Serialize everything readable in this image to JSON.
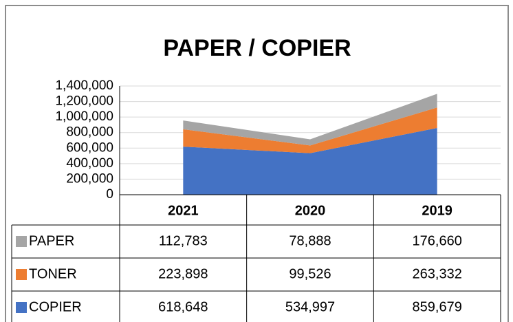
{
  "chart_data": {
    "type": "area",
    "title": "PAPER / COPIER",
    "categories": [
      "2021",
      "2020",
      "2019"
    ],
    "series": [
      {
        "name": "COPIER",
        "color": "#4472c4",
        "values": [
          618648,
          534997,
          859679
        ],
        "value_labels": [
          "618,648",
          "534,997",
          "859,679"
        ]
      },
      {
        "name": "TONER",
        "color": "#ed7d31",
        "values": [
          223898,
          99526,
          263332
        ],
        "value_labels": [
          "223,898",
          "99,526",
          "263,332"
        ]
      },
      {
        "name": "PAPER",
        "color": "#a5a5a5",
        "values": [
          112783,
          78888,
          176660
        ],
        "value_labels": [
          "112,783",
          "78,888",
          "176,660"
        ]
      }
    ],
    "stacked": true,
    "ylim": [
      0,
      1400000
    ],
    "yticks": [
      0,
      {
        "value": 200000,
        "label": "200,000"
      },
      {
        "value": 400000,
        "label": "400,000"
      },
      {
        "value": 600000,
        "label": "600,000"
      },
      {
        "value": 800000,
        "label": "800,000"
      },
      {
        "value": 1000000,
        "label": "1,000,000"
      },
      {
        "value": 1200000,
        "label": "1,200,000"
      },
      {
        "value": 1400000,
        "label": "1,400,000"
      }
    ],
    "grid": true
  }
}
